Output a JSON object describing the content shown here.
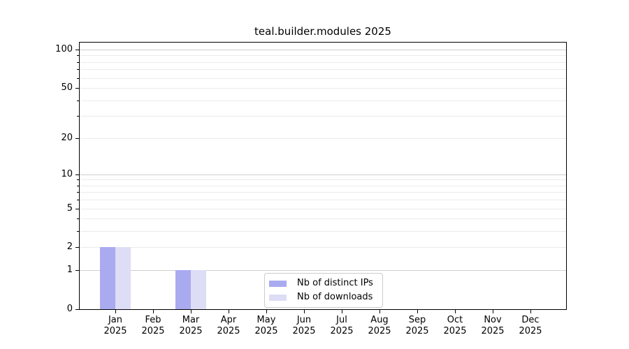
{
  "title": "teal.builder.modules 2025",
  "chart_data": {
    "type": "bar",
    "title": "teal.builder.modules 2025",
    "year": "2025",
    "categories": [
      "Jan",
      "Feb",
      "Mar",
      "Apr",
      "May",
      "Jun",
      "Jul",
      "Aug",
      "Sep",
      "Oct",
      "Nov",
      "Dec"
    ],
    "series": [
      {
        "name": "Nb of distinct IPs",
        "color": "#aaaaf0",
        "values": [
          2,
          0,
          1,
          0,
          0,
          0,
          0,
          0,
          0,
          0,
          0,
          0
        ]
      },
      {
        "name": "Nb of downloads",
        "color": "#ddddf6",
        "values": [
          2,
          0,
          1,
          0,
          0,
          0,
          0,
          0,
          0,
          0,
          0,
          0
        ]
      }
    ],
    "xlabel": "",
    "ylabel": "",
    "yscale": "log1p",
    "ylim": [
      0,
      100
    ],
    "yticks": [
      0,
      1,
      2,
      5,
      10,
      20,
      50,
      100
    ],
    "yticks_minor": [
      3,
      4,
      6,
      7,
      8,
      9,
      30,
      40,
      60,
      70,
      80,
      90
    ],
    "grid": "horizontal",
    "legend_position": "lower-center-inside"
  },
  "colors": {
    "background": "#ffffff",
    "axis": "#000000",
    "grid_major": "#cfcfcf",
    "grid_minor": "#ebebeb",
    "legend_border": "#cccccc"
  }
}
